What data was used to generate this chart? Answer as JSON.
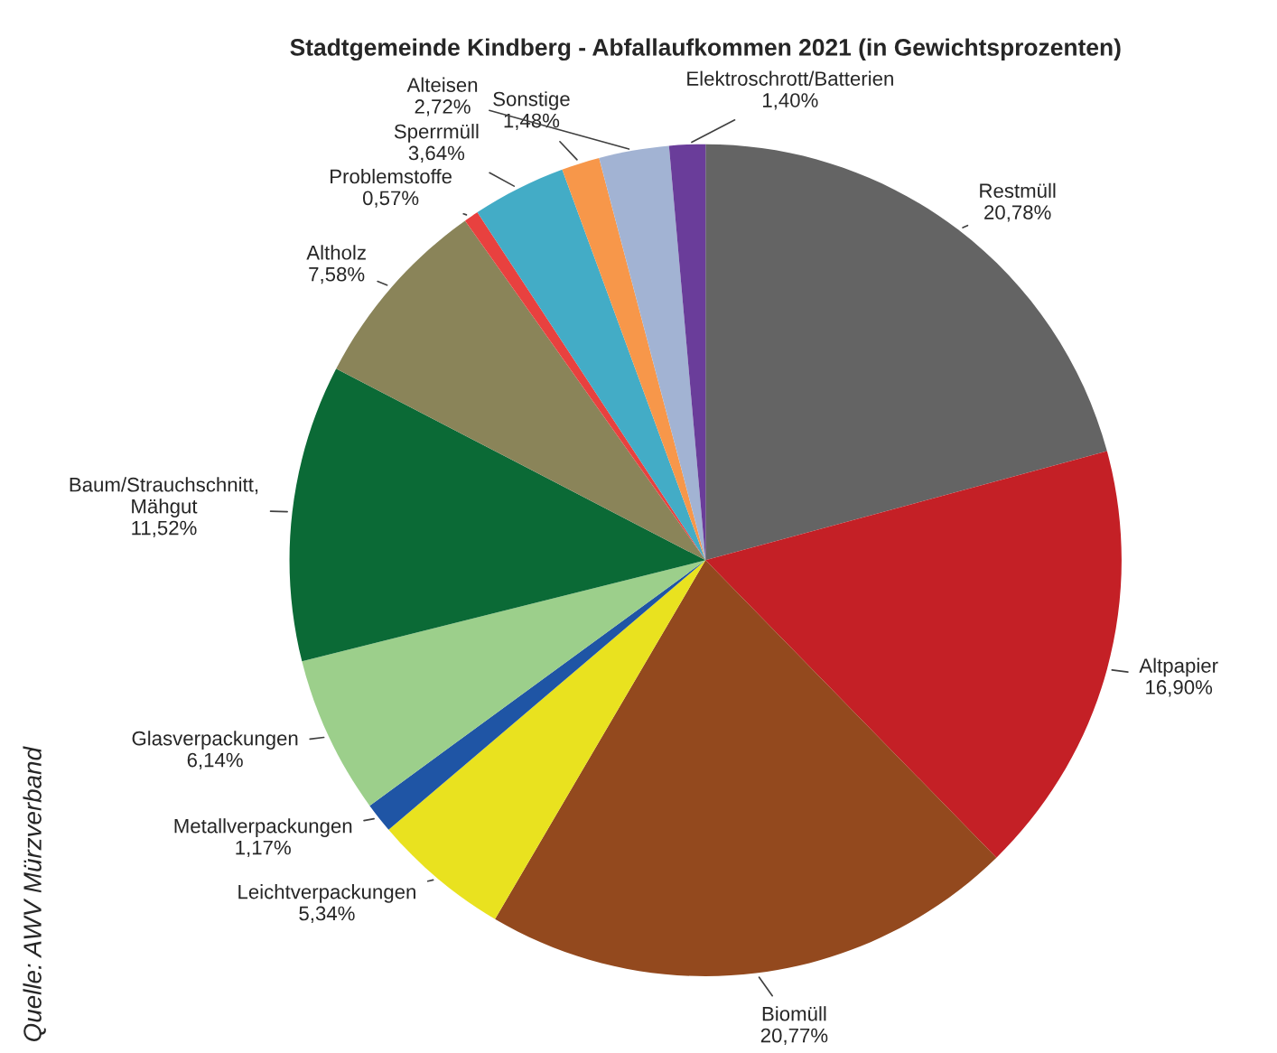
{
  "chart_data": {
    "type": "pie",
    "title": "Stadtgemeinde Kindberg - Abfallaufkommen 2021 (in Gewichtsprozenten)",
    "categories": [
      "Restmüll",
      "Altpapier",
      "Biomüll",
      "Leichtverpackungen",
      "Metallverpackungen",
      "Glasverpackungen",
      "Baum/Strauchschnitt,\nMähgut",
      "Altholz",
      "Problemstoffe",
      "Sperrmüll",
      "Sonstige",
      "Alteisen",
      "Elektroschrott/Batterien"
    ],
    "values": [
      20.78,
      16.9,
      20.77,
      5.34,
      1.17,
      6.14,
      11.52,
      7.58,
      0.57,
      3.64,
      1.48,
      2.72,
      1.4
    ],
    "value_labels": [
      "20,78%",
      "16,90%",
      "20,77%",
      "5,34%",
      "1,17%",
      "6,14%",
      "11,52%",
      "7,58%",
      "0,57%",
      "3,64%",
      "1,48%",
      "2,72%",
      "1,40%"
    ],
    "colors": [
      "#646464",
      "#c42026",
      "#93491e",
      "#e9e21f",
      "#1f55a5",
      "#9ccf8b",
      "#0b6a36",
      "#8a8459",
      "#e8413f",
      "#43acc6",
      "#f7974a",
      "#a2b3d3",
      "#6a3d9a"
    ],
    "annotations": [
      "Quelle: AWV Mürzverband"
    ]
  }
}
